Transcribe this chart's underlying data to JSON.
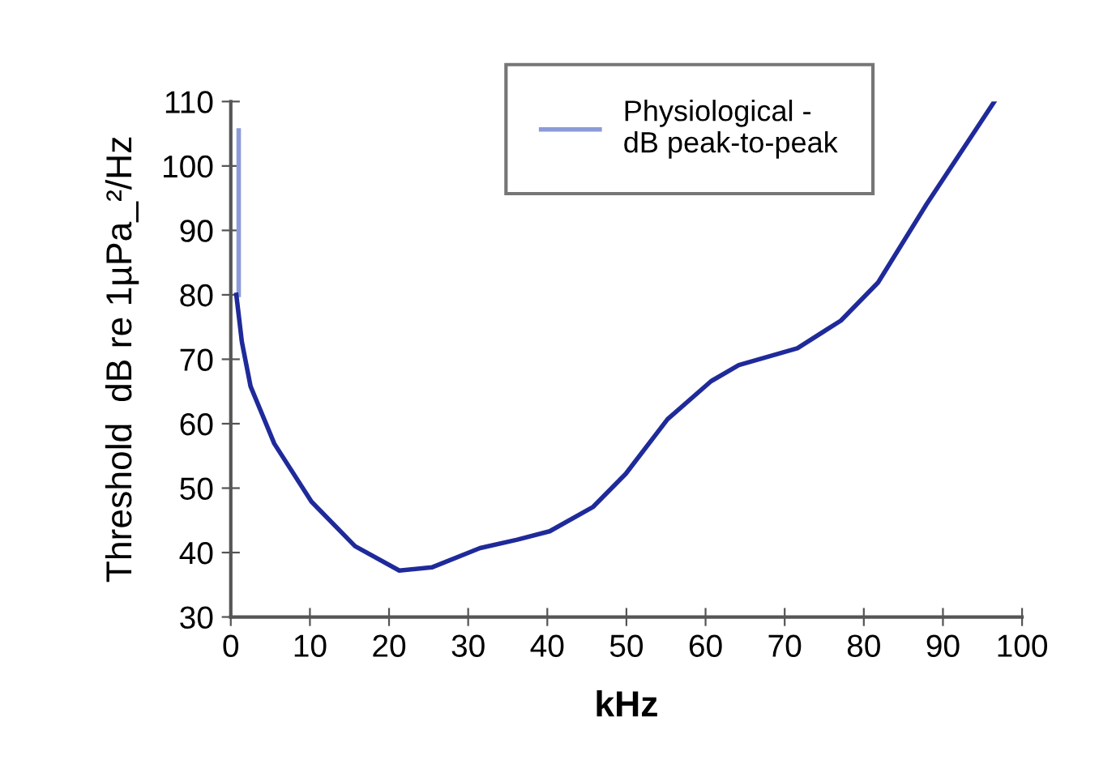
{
  "chart_data": {
    "type": "line",
    "xlabel": "kHz",
    "ylabel": "Threshold  dB re 1µPa_²/Hz",
    "series": [
      {
        "name": "Physiological -\ndB peak-to-peak",
        "color": "#8c9bd9",
        "x": [
          1,
          1
        ],
        "values": [
          80,
          105.5
        ]
      },
      {
        "color": "#1f2a9a",
        "x": [
          0.7,
          1.4,
          2.5,
          5.5,
          10.2,
          15.7,
          21.3,
          25.4,
          31.5,
          36.2,
          40.3,
          45.8,
          49.9,
          55.2,
          60.7,
          64.2,
          71.6,
          77.1,
          81.8,
          87.9,
          96.5
        ],
        "values": [
          80,
          72.7,
          65.8,
          56.9,
          47.9,
          41,
          37.2,
          37.7,
          40.7,
          42,
          43.3,
          47.1,
          52.2,
          60.7,
          66.6,
          69.1,
          71.7,
          76,
          81.9,
          94,
          110
        ]
      }
    ],
    "xlim": [
      0,
      100
    ],
    "xticks": [
      0,
      10,
      20,
      30,
      40,
      50,
      60,
      70,
      80,
      90,
      100
    ],
    "ylim": [
      30,
      110
    ],
    "yticks": [
      30,
      40,
      50,
      60,
      70,
      80,
      90,
      100,
      110
    ],
    "grid": false,
    "legend": "top right",
    "marker": "none",
    "line_style": "solid"
  }
}
